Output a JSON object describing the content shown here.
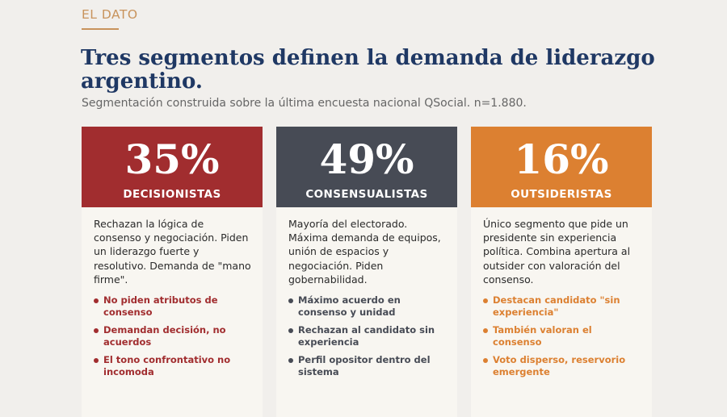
{
  "kicker": "EL DATO",
  "title": "Tres segmentos definen la demanda de liderazgo argentino.",
  "subtitle": "Segmentación construida sobre la última encuesta nacional QSocial. n=1.880.",
  "cards": [
    {
      "percent": "35%",
      "name": "DECISIONISTAS",
      "color": "#a12d2f",
      "description": "Rechazan la lógica de consenso y negociación. Piden un liderazgo fuerte y resolutivo. Demanda de \"mano firme\".",
      "bullets": [
        "No piden atributos de consenso",
        "Demandan decisión, no acuerdos",
        "El tono confrontativo no incomoda"
      ]
    },
    {
      "percent": "49%",
      "name": "CONSENSUALISTAS",
      "color": "#474b55",
      "description": "Mayoría del electorado. Máxima demanda de equipos, unión de espacios y negociación. Piden gobernabilidad.",
      "bullets": [
        "Máximo acuerdo en consenso y unidad",
        "Rechazan al candidato sin experiencia",
        "Perfil opositor dentro del sistema"
      ]
    },
    {
      "percent": "16%",
      "name": "OUTSIDERISTAS",
      "color": "#dc8031",
      "description": "Único segmento que pide un presidente sin experiencia política. Combina apertura al outsider con valoración del consenso.",
      "bullets": [
        "Destacan candidato \"sin experiencia\"",
        "También valoran el consenso",
        "Voto disperso, reservorio emergente"
      ]
    }
  ]
}
